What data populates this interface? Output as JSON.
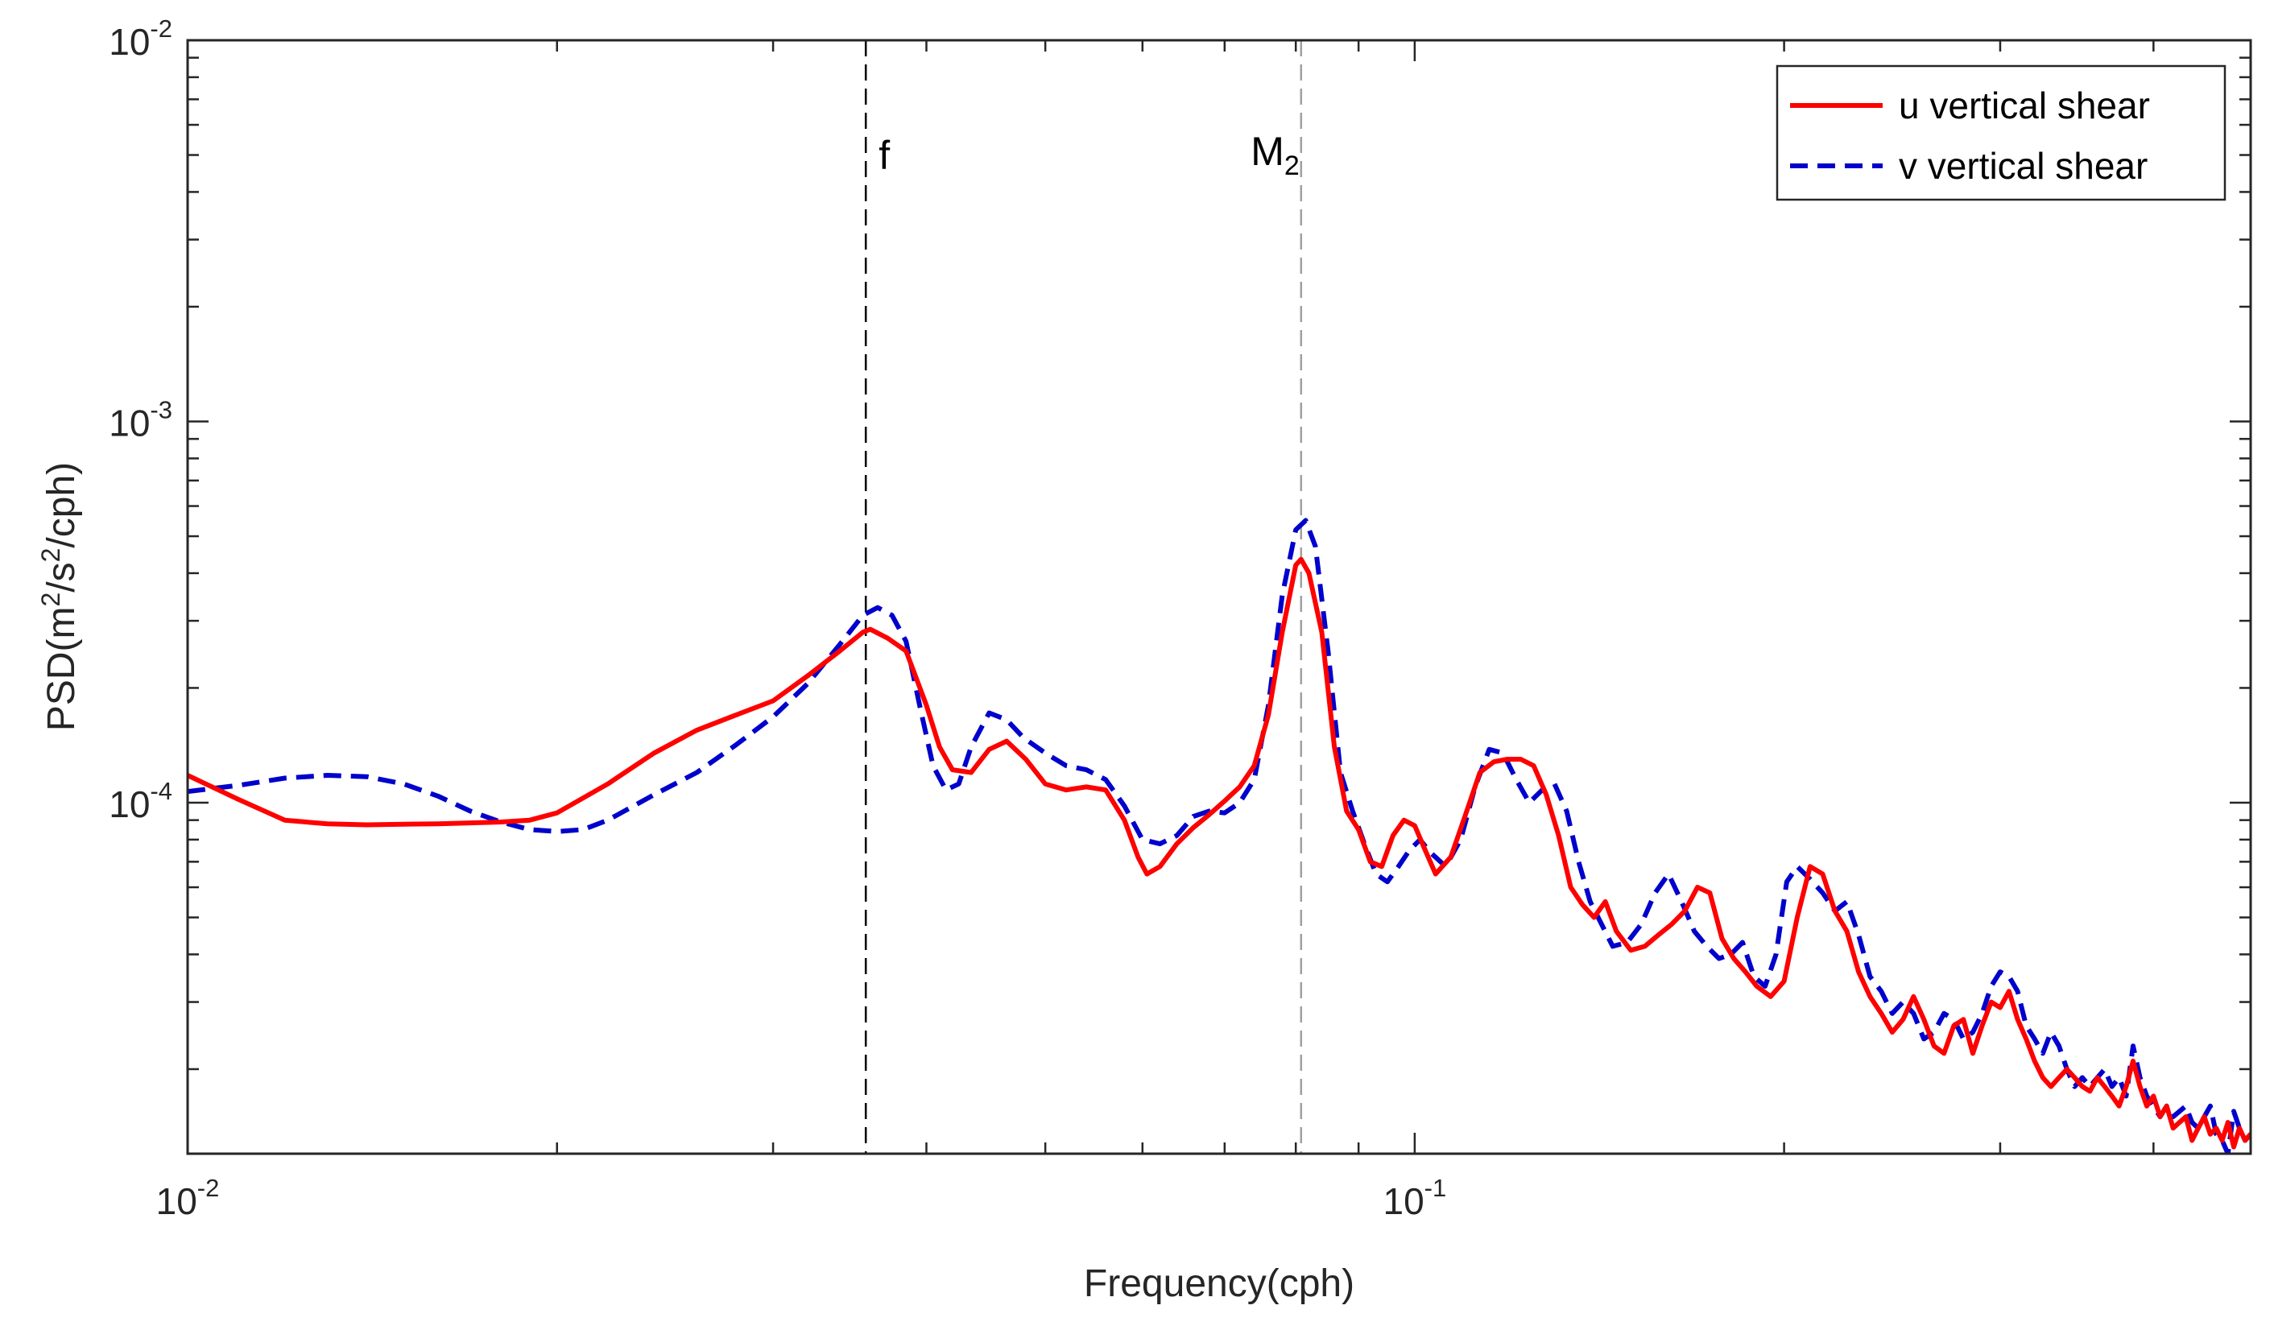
{
  "chart_data": {
    "type": "line",
    "title": "",
    "xlabel": "Frequency(cph)",
    "ylabel": {
      "prefix": "PSD(m",
      "sup1": "2",
      "mid": "/s",
      "sup2": "2",
      "suffix": "/cph)"
    },
    "x_scale": "log",
    "y_scale": "log",
    "xlim": [
      0.01,
      0.48
    ],
    "ylim": [
      1.2e-05,
      0.01
    ],
    "x_ticks": [
      {
        "value": 0.01,
        "base": "10",
        "exp": "-2"
      },
      {
        "value": 0.1,
        "base": "10",
        "exp": "-1"
      }
    ],
    "y_ticks": [
      {
        "value": 0.0001,
        "base": "10",
        "exp": "-4"
      },
      {
        "value": 0.001,
        "base": "10",
        "exp": "-3"
      },
      {
        "value": 0.01,
        "base": "10",
        "exp": "-2"
      }
    ],
    "grid": false,
    "legend_position": "top-right",
    "colors": {
      "u": "#ff0000",
      "v": "#0000cc",
      "f_line": "#000000",
      "m2_line": "#a0a0a0"
    },
    "annotations": [
      {
        "id": "f",
        "x": 0.0357,
        "label": "f",
        "sub": ""
      },
      {
        "id": "m2",
        "x": 0.0808,
        "label": "M",
        "sub": "2"
      }
    ],
    "series": [
      {
        "name": "u vertical shear",
        "style": "solid",
        "x": [
          0.01,
          0.011,
          0.012,
          0.013,
          0.014,
          0.015,
          0.016,
          0.017,
          0.018,
          0.019,
          0.02,
          0.022,
          0.024,
          0.026,
          0.028,
          0.03,
          0.032,
          0.034,
          0.0355,
          0.036,
          0.0372,
          0.0385,
          0.04,
          0.041,
          0.042,
          0.0435,
          0.045,
          0.0465,
          0.0482,
          0.05,
          0.052,
          0.054,
          0.056,
          0.058,
          0.0595,
          0.0605,
          0.062,
          0.064,
          0.066,
          0.068,
          0.07,
          0.072,
          0.074,
          0.076,
          0.078,
          0.08,
          0.0808,
          0.082,
          0.084,
          0.086,
          0.088,
          0.09,
          0.092,
          0.094,
          0.096,
          0.098,
          0.1,
          0.102,
          0.104,
          0.107,
          0.11,
          0.113,
          0.116,
          0.119,
          0.122,
          0.125,
          0.128,
          0.131,
          0.134,
          0.137,
          0.14,
          0.143,
          0.146,
          0.15,
          0.154,
          0.158,
          0.162,
          0.166,
          0.17,
          0.174,
          0.178,
          0.182,
          0.186,
          0.19,
          0.195,
          0.2,
          0.205,
          0.21,
          0.215,
          0.22,
          0.225,
          0.23,
          0.235,
          0.24,
          0.245,
          0.25,
          0.255,
          0.26,
          0.265,
          0.27,
          0.275,
          0.28,
          0.285,
          0.29,
          0.295,
          0.3,
          0.305,
          0.31,
          0.315,
          0.32,
          0.325,
          0.33,
          0.335,
          0.34,
          0.345,
          0.35,
          0.355,
          0.36,
          0.365,
          0.37,
          0.375,
          0.38,
          0.385,
          0.39,
          0.395,
          0.4,
          0.405,
          0.41,
          0.415,
          0.42,
          0.425,
          0.43,
          0.435,
          0.44,
          0.445,
          0.45,
          0.455,
          0.46,
          0.465,
          0.47,
          0.475,
          0.48
        ],
        "y": [
          0.000118,
          0.000102,
          9e-05,
          8.8e-05,
          8.75e-05,
          8.78e-05,
          8.8e-05,
          8.85e-05,
          8.9e-05,
          9e-05,
          9.4e-05,
          0.000112,
          0.000135,
          0.000155,
          0.00017,
          0.000185,
          0.000215,
          0.00025,
          0.00028,
          0.000285,
          0.00027,
          0.00025,
          0.00018,
          0.00014,
          0.000122,
          0.00012,
          0.000138,
          0.000145,
          0.00013,
          0.000112,
          0.000108,
          0.00011,
          0.000108,
          9e-05,
          7.2e-05,
          6.5e-05,
          6.8e-05,
          7.8e-05,
          8.6e-05,
          9.3e-05,
          0.000101,
          0.00011,
          0.000125,
          0.00017,
          0.00028,
          0.00042,
          0.000435,
          0.0004,
          0.00028,
          0.00014,
          9.5e-05,
          8.5e-05,
          7e-05,
          6.8e-05,
          8.2e-05,
          9e-05,
          8.7e-05,
          7.5e-05,
          6.5e-05,
          7.2e-05,
          9.3e-05,
          0.00012,
          0.000128,
          0.00013,
          0.00013,
          0.000125,
          0.000105,
          8.2e-05,
          6e-05,
          5.4e-05,
          5e-05,
          5.5e-05,
          4.6e-05,
          4.1e-05,
          4.2e-05,
          4.5e-05,
          4.8e-05,
          5.2e-05,
          6e-05,
          5.8e-05,
          4.4e-05,
          3.9e-05,
          3.6e-05,
          3.3e-05,
          3.1e-05,
          3.4e-05,
          5e-05,
          6.8e-05,
          6.5e-05,
          5.2e-05,
          4.6e-05,
          3.6e-05,
          3.1e-05,
          2.8e-05,
          2.5e-05,
          2.7e-05,
          3.1e-05,
          2.7e-05,
          2.3e-05,
          2.2e-05,
          2.6e-05,
          2.7e-05,
          2.2e-05,
          2.6e-05,
          3e-05,
          2.9e-05,
          3.2e-05,
          2.7e-05,
          2.4e-05,
          2.1e-05,
          1.9e-05,
          1.8e-05,
          1.9e-05,
          2e-05,
          1.9e-05,
          1.8e-05,
          1.75e-05,
          1.9e-05,
          1.8e-05,
          1.7e-05,
          1.6e-05,
          1.8e-05,
          2.1e-05,
          1.8e-05,
          1.6e-05,
          1.7e-05,
          1.5e-05,
          1.6e-05,
          1.4e-05,
          1.45e-05,
          1.5e-05,
          1.3e-05,
          1.4e-05,
          1.5e-05,
          1.35e-05,
          1.4e-05,
          1.3e-05,
          1.45e-05,
          1.25e-05,
          1.4e-05,
          1.3e-05,
          1.35e-05
        ]
      },
      {
        "name": "v vertical shear",
        "style": "dashed",
        "x": [
          0.01,
          0.011,
          0.012,
          0.013,
          0.014,
          0.015,
          0.016,
          0.017,
          0.018,
          0.019,
          0.02,
          0.021,
          0.022,
          0.024,
          0.026,
          0.028,
          0.03,
          0.032,
          0.034,
          0.0355,
          0.0365,
          0.0375,
          0.0385,
          0.0395,
          0.0405,
          0.0415,
          0.0425,
          0.0435,
          0.045,
          0.0465,
          0.048,
          0.05,
          0.052,
          0.054,
          0.056,
          0.058,
          0.06,
          0.062,
          0.064,
          0.066,
          0.068,
          0.07,
          0.072,
          0.074,
          0.076,
          0.078,
          0.08,
          0.0815,
          0.083,
          0.085,
          0.087,
          0.089,
          0.091,
          0.093,
          0.095,
          0.097,
          0.099,
          0.101,
          0.103,
          0.106,
          0.109,
          0.112,
          0.115,
          0.118,
          0.121,
          0.124,
          0.127,
          0.13,
          0.133,
          0.136,
          0.139,
          0.142,
          0.145,
          0.149,
          0.153,
          0.157,
          0.161,
          0.165,
          0.169,
          0.173,
          0.177,
          0.181,
          0.185,
          0.189,
          0.193,
          0.197,
          0.201,
          0.205,
          0.21,
          0.215,
          0.22,
          0.225,
          0.23,
          0.235,
          0.24,
          0.245,
          0.25,
          0.255,
          0.26,
          0.265,
          0.27,
          0.275,
          0.28,
          0.285,
          0.29,
          0.295,
          0.3,
          0.305,
          0.31,
          0.315,
          0.32,
          0.325,
          0.33,
          0.335,
          0.34,
          0.345,
          0.35,
          0.355,
          0.36,
          0.365,
          0.37,
          0.375,
          0.38,
          0.385,
          0.39,
          0.395,
          0.4,
          0.405,
          0.41,
          0.415,
          0.42,
          0.425,
          0.43,
          0.435,
          0.44,
          0.445,
          0.45,
          0.455,
          0.46,
          0.465,
          0.47,
          0.475,
          0.48
        ],
        "y": [
          0.000107,
          0.000111,
          0.000116,
          0.000118,
          0.000117,
          0.000112,
          0.000104,
          9.5e-05,
          8.9e-05,
          8.5e-05,
          8.4e-05,
          8.5e-05,
          9e-05,
          0.000105,
          0.00012,
          0.000142,
          0.000168,
          0.000205,
          0.00026,
          0.00031,
          0.000325,
          0.00031,
          0.000265,
          0.00018,
          0.000125,
          0.000108,
          0.000112,
          0.00014,
          0.000172,
          0.000165,
          0.000148,
          0.000135,
          0.000125,
          0.000122,
          0.000115,
          9.8e-05,
          8e-05,
          7.8e-05,
          8.2e-05,
          9.2e-05,
          9.5e-05,
          9.4e-05,
          0.0001,
          0.000115,
          0.00018,
          0.00035,
          0.00052,
          0.00055,
          0.00047,
          0.00025,
          0.00012,
          9.5e-05,
          7.8e-05,
          6.5e-05,
          6.2e-05,
          6.8e-05,
          7.5e-05,
          8e-05,
          7.4e-05,
          6.8e-05,
          8e-05,
          0.00011,
          0.000138,
          0.000135,
          0.000115,
          0.0001,
          0.000108,
          0.000112,
          9.5e-05,
          7e-05,
          5.5e-05,
          4.8e-05,
          4.2e-05,
          4.3e-05,
          4.8e-05,
          5.8e-05,
          6.5e-05,
          5.5e-05,
          4.6e-05,
          4.2e-05,
          3.9e-05,
          4e-05,
          4.3e-05,
          3.5e-05,
          3.3e-05,
          4e-05,
          6.2e-05,
          6.8e-05,
          6.3e-05,
          5.8e-05,
          5.2e-05,
          5.5e-05,
          4.5e-05,
          3.5e-05,
          3.2e-05,
          2.8e-05,
          3e-05,
          2.8e-05,
          2.4e-05,
          2.5e-05,
          2.8e-05,
          2.7e-05,
          2.4e-05,
          2.5e-05,
          2.8e-05,
          3.3e-05,
          3.6e-05,
          3.5e-05,
          3.2e-05,
          2.6e-05,
          2.4e-05,
          2.2e-05,
          2.5e-05,
          2.3e-05,
          2e-05,
          1.8e-05,
          1.9e-05,
          1.8e-05,
          1.9e-05,
          2e-05,
          1.8e-05,
          1.9e-05,
          1.7e-05,
          2.3e-05,
          1.9e-05,
          1.7e-05,
          1.6e-05,
          1.5e-05,
          1.6e-05,
          1.5e-05,
          1.55e-05,
          1.6e-05,
          1.45e-05,
          1.4e-05,
          1.5e-05,
          1.6e-05,
          1.35e-05,
          1.3e-05,
          1.2e-05,
          1.55e-05,
          1.4e-05,
          1.3e-05,
          1.35e-05
        ]
      }
    ]
  }
}
